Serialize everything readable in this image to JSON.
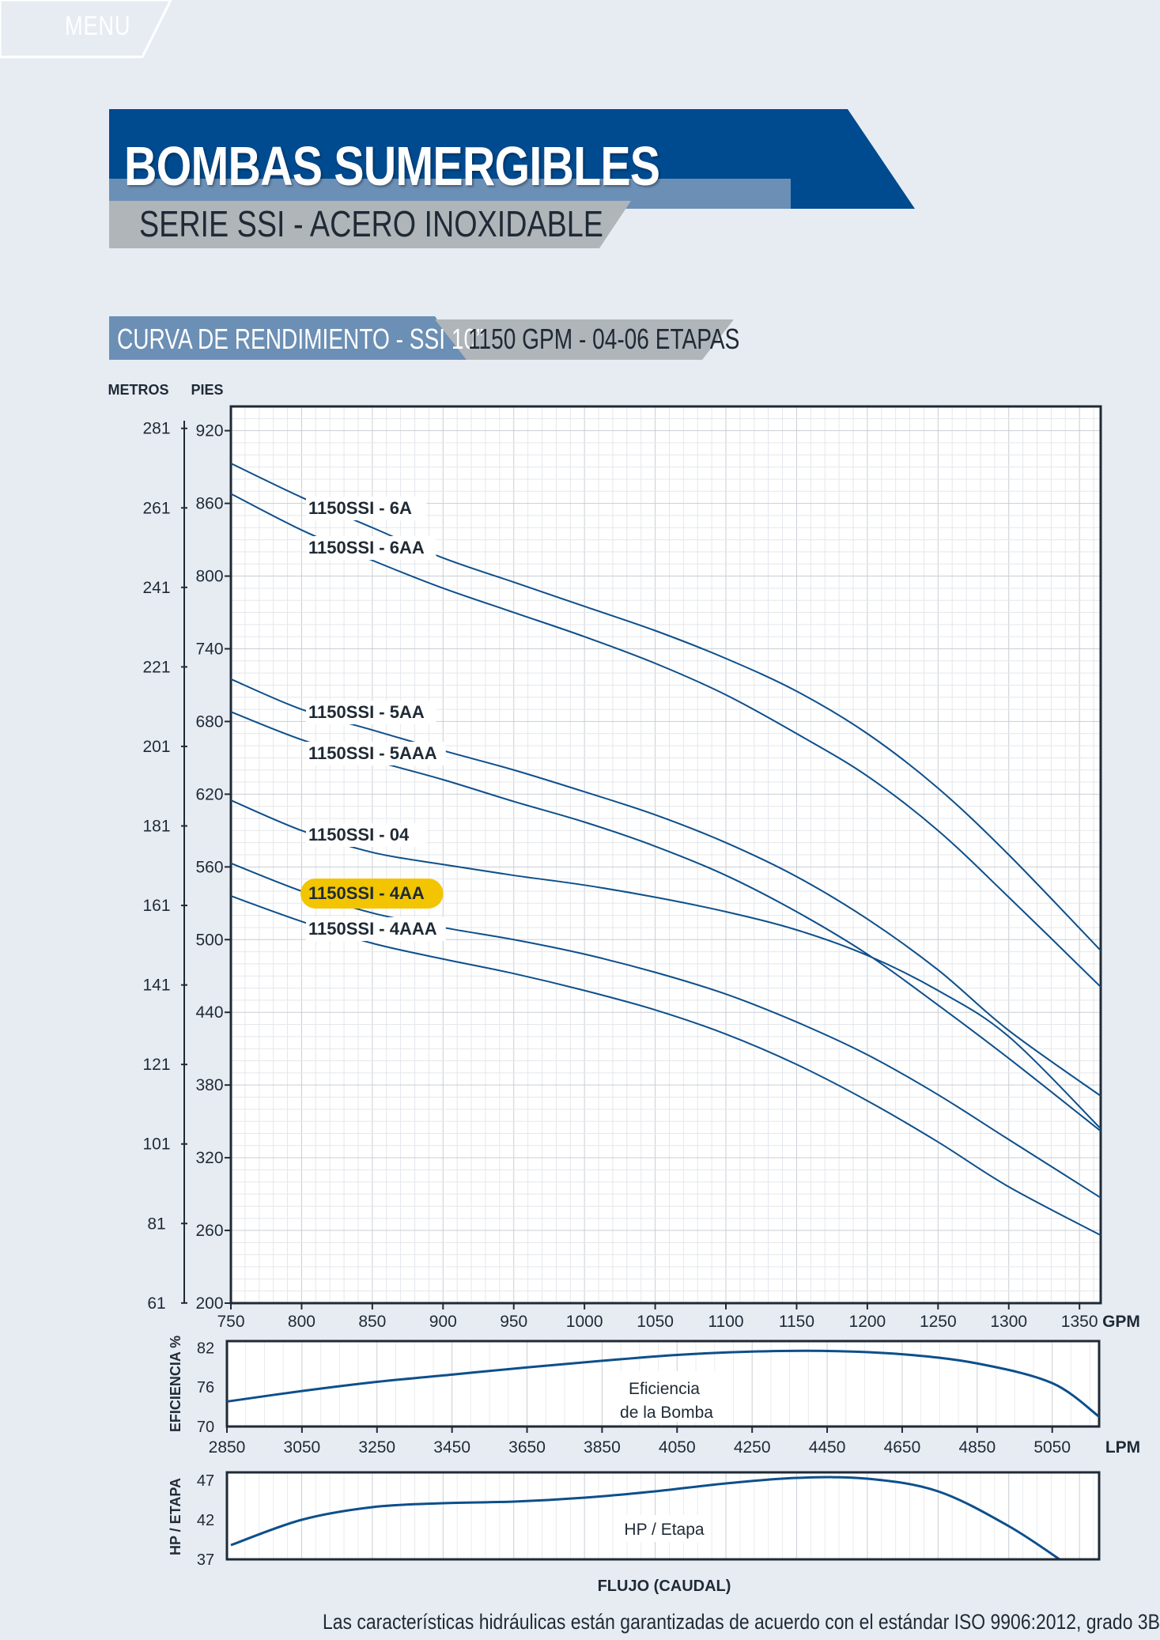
{
  "menu": {
    "label": "MENU"
  },
  "header": {
    "title": "BOMBAS SUMERGIBLES",
    "subtitle": "SERIE SSI - ACERO INOXIDABLE"
  },
  "section": {
    "label": "CURVA DE RENDIMIENTO - SSI 10”",
    "spec": "1150 GPM - 04-06 ETAPAS"
  },
  "footnote": "Las características hidráulicas están garantizadas de acuerdo con el estándar ISO 9906:2012, grado 3B",
  "colors": {
    "curve": "#0d4f8b",
    "header_blue": "#004a8f",
    "header_light": "#6b8fb5",
    "gray_band": "#b0b5ba",
    "highlight": "#f2c500"
  },
  "chart_data": [
    {
      "type": "line",
      "title": "",
      "ylabel_left": "METROS",
      "ylabel_right": "PIES",
      "xlabel": "GPM",
      "xlim": [
        750,
        1365
      ],
      "ylim": [
        200,
        940
      ],
      "x_ticks": [
        "750",
        "800",
        "850",
        "900",
        "950",
        "1000",
        "1050",
        "1100",
        "1150",
        "1200",
        "1250",
        "1300",
        "1350"
      ],
      "y_ticks_pies": [
        "920",
        "860",
        "800",
        "740",
        "680",
        "620",
        "560",
        "500",
        "440",
        "380",
        "320",
        "260",
        "200"
      ],
      "y_ticks_metros": [
        "281",
        "261",
        "241",
        "221",
        "201",
        "181",
        "161",
        "141",
        "121",
        "101",
        "81",
        "61"
      ],
      "grid": true,
      "series": [
        {
          "name": "1150SSI - 6A",
          "x": [
            750,
            800,
            850,
            900,
            950,
            1000,
            1050,
            1100,
            1150,
            1200,
            1250,
            1300,
            1365
          ],
          "y": [
            893,
            865,
            840,
            815,
            795,
            775,
            755,
            732,
            705,
            670,
            625,
            570,
            491
          ]
        },
        {
          "name": "1150SSI - 6AA",
          "x": [
            750,
            800,
            850,
            900,
            950,
            1000,
            1050,
            1100,
            1150,
            1200,
            1250,
            1300,
            1365
          ],
          "y": [
            868,
            838,
            813,
            790,
            770,
            750,
            728,
            702,
            670,
            635,
            590,
            535,
            461
          ]
        },
        {
          "name": "1150SSI - 5AA",
          "x": [
            750,
            800,
            850,
            900,
            950,
            1000,
            1050,
            1100,
            1150,
            1200,
            1250,
            1300,
            1365
          ],
          "y": [
            715,
            690,
            673,
            656,
            640,
            622,
            603,
            580,
            552,
            517,
            475,
            425,
            371
          ]
        },
        {
          "name": "1150SSI - 5AAA",
          "x": [
            750,
            800,
            850,
            900,
            950,
            1000,
            1050,
            1100,
            1150,
            1200,
            1250,
            1300,
            1365
          ],
          "y": [
            688,
            665,
            648,
            632,
            614,
            597,
            577,
            553,
            523,
            488,
            446,
            402,
            342
          ]
        },
        {
          "name": "1150SSI - 04",
          "x": [
            750,
            800,
            850,
            900,
            950,
            1000,
            1050,
            1100,
            1150,
            1200,
            1250,
            1300,
            1365
          ],
          "y": [
            615,
            590,
            572,
            562,
            553,
            545,
            535,
            523,
            508,
            487,
            458,
            420,
            344
          ]
        },
        {
          "name": "1150SSI - 4AA",
          "x": [
            750,
            800,
            850,
            900,
            950,
            1000,
            1050,
            1100,
            1150,
            1200,
            1250,
            1300,
            1365
          ],
          "y": [
            563,
            540,
            522,
            510,
            500,
            488,
            473,
            455,
            432,
            405,
            372,
            335,
            287
          ]
        },
        {
          "name": "1150SSI - 4AAA",
          "x": [
            750,
            800,
            850,
            900,
            950,
            1000,
            1050,
            1100,
            1150,
            1200,
            1250,
            1300,
            1365
          ],
          "y": [
            536,
            515,
            497,
            484,
            472,
            458,
            442,
            422,
            397,
            367,
            333,
            296,
            256
          ]
        }
      ],
      "highlighted_series": "1150SSI - 4AA"
    },
    {
      "type": "line",
      "ylabel": "EFICIENCIA %",
      "xlabel": "LPM",
      "xlim": [
        2850,
        5175
      ],
      "ylim": [
        70,
        83
      ],
      "x_ticks": [
        "2850",
        "3050",
        "3250",
        "3450",
        "3650",
        "3850",
        "4050",
        "4250",
        "4450",
        "4650",
        "4850",
        "5050"
      ],
      "y_ticks": [
        "82",
        "76",
        "70"
      ],
      "annotation": [
        "Eficiencia",
        "de la Bomba"
      ],
      "series": [
        {
          "name": "Eficiencia de la Bomba",
          "x": [
            2850,
            3050,
            3250,
            3450,
            3650,
            3850,
            4050,
            4250,
            4450,
            4650,
            4850,
            5050,
            5175
          ],
          "y": [
            73.8,
            75.4,
            76.8,
            77.9,
            79.0,
            80.0,
            80.9,
            81.4,
            81.5,
            81.0,
            79.6,
            76.6,
            71.5
          ]
        }
      ]
    },
    {
      "type": "line",
      "ylabel": "HP / ETAPA",
      "xlabel": "FLUJO (CAUDAL)",
      "ylim": [
        37,
        48
      ],
      "y_ticks": [
        "47",
        "42",
        "37"
      ],
      "annotation": "HP / Etapa",
      "series": [
        {
          "name": "HP / Etapa",
          "x": [
            750,
            800,
            850,
            900,
            950,
            1000,
            1050,
            1100,
            1150,
            1200,
            1250,
            1300,
            1340
          ],
          "y": [
            38.8,
            42.0,
            43.6,
            44.1,
            44.3,
            44.8,
            45.6,
            46.6,
            47.3,
            47.2,
            45.6,
            41.2,
            36.5
          ]
        }
      ]
    }
  ]
}
